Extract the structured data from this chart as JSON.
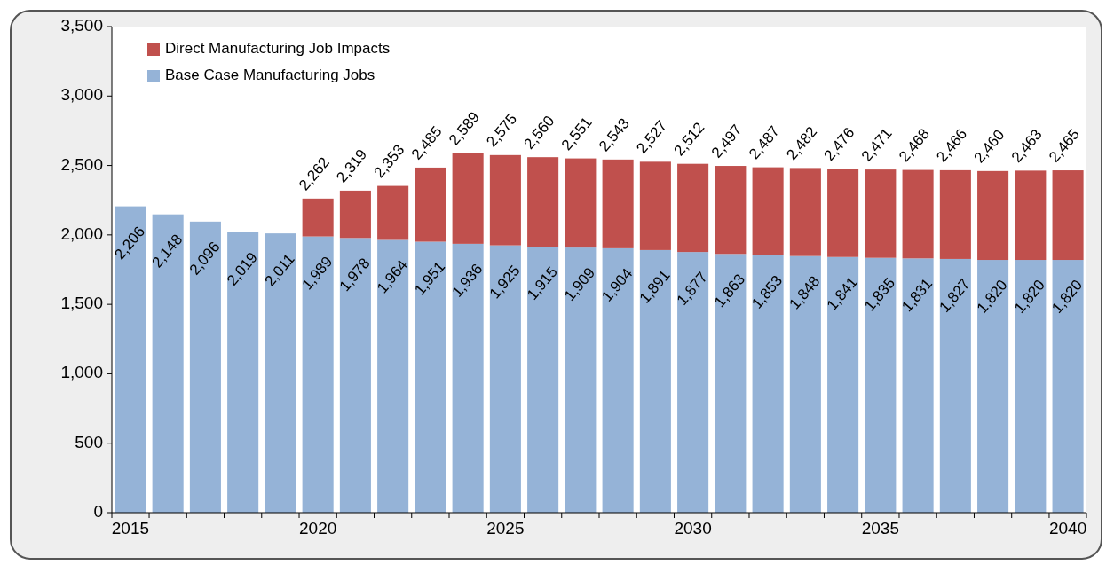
{
  "chart_data": {
    "type": "bar",
    "stacked": true,
    "categories": [
      "2015",
      null,
      null,
      null,
      null,
      "2020",
      null,
      null,
      null,
      null,
      "2025",
      null,
      null,
      null,
      null,
      "2030",
      null,
      null,
      null,
      null,
      "2035",
      null,
      null,
      null,
      null,
      "2040"
    ],
    "series": [
      {
        "name": "Base Case Manufacturing Jobs",
        "color": "#95b3d7",
        "values": [
          2206,
          2148,
          2096,
          2019,
          2011,
          1989,
          1978,
          1964,
          1951,
          1936,
          1925,
          1915,
          1909,
          1904,
          1891,
          1877,
          1863,
          1853,
          1848,
          1841,
          1835,
          1831,
          1827,
          1820,
          1820,
          1820
        ],
        "value_labels": [
          "2,206",
          "2,148",
          "2,096",
          "2,019",
          "2,011",
          "1,989",
          "1,978",
          "1,964",
          "1,951",
          "1,936",
          "1,925",
          "1,915",
          "1,909",
          "1,904",
          "1,891",
          "1,877",
          "1,863",
          "1,853",
          "1,848",
          "1,841",
          "1,835",
          "1,831",
          "1,827",
          "1,820",
          "1,820",
          "1,820"
        ]
      },
      {
        "name": "Direct Manufacturing Job Impacts",
        "color": "#c0504d",
        "values": [
          null,
          null,
          null,
          null,
          null,
          273,
          341,
          389,
          534,
          653,
          650,
          645,
          642,
          639,
          636,
          635,
          634,
          634,
          634,
          635,
          636,
          637,
          639,
          640,
          643,
          645
        ]
      }
    ],
    "totals": [
      null,
      null,
      null,
      null,
      null,
      "2,262",
      "2,319",
      "2,353",
      "2,485",
      "2,589",
      "2,575",
      "2,560",
      "2,551",
      "2,543",
      "2,527",
      "2,512",
      "2,497",
      "2,487",
      "2,482",
      "2,476",
      "2,471",
      "2,468",
      "2,466",
      "2,460",
      "2,463",
      "2,465"
    ],
    "ylim": [
      0,
      3500
    ],
    "yticks": [
      {
        "value": 0,
        "label": "0"
      },
      {
        "value": 500,
        "label": "500"
      },
      {
        "value": 1000,
        "label": "1,000"
      },
      {
        "value": 1500,
        "label": "1,500"
      },
      {
        "value": 2000,
        "label": "2,000"
      },
      {
        "value": 2500,
        "label": "2,500"
      },
      {
        "value": 3000,
        "label": "3,000"
      },
      {
        "value": 3500,
        "label": "3,500"
      }
    ],
    "grid": false,
    "legend": "top left"
  }
}
